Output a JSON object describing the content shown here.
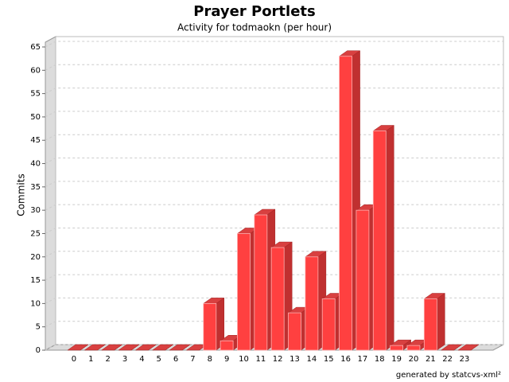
{
  "chart_data": {
    "type": "bar3d",
    "title": "Prayer Portlets",
    "subtitle": "Activity for todmaokn (per hour)",
    "y_label": "Commits",
    "credit": "generated by statcvs-xml²",
    "categories": [
      "0",
      "1",
      "2",
      "3",
      "4",
      "5",
      "6",
      "7",
      "8",
      "9",
      "10",
      "11",
      "12",
      "13",
      "14",
      "15",
      "16",
      "17",
      "18",
      "19",
      "20",
      "21",
      "22",
      "23"
    ],
    "values": [
      0,
      0,
      0,
      0,
      0,
      0,
      0,
      0,
      10,
      2,
      25,
      29,
      22,
      8,
      20,
      11,
      63,
      30,
      47,
      1,
      1,
      11,
      0,
      0
    ],
    "color": "#ff4040",
    "ylim": [
      0,
      65
    ],
    "yticks": [
      0,
      5,
      10,
      15,
      20,
      25,
      30,
      35,
      40,
      45,
      50,
      55,
      60,
      65
    ],
    "grid": true
  }
}
